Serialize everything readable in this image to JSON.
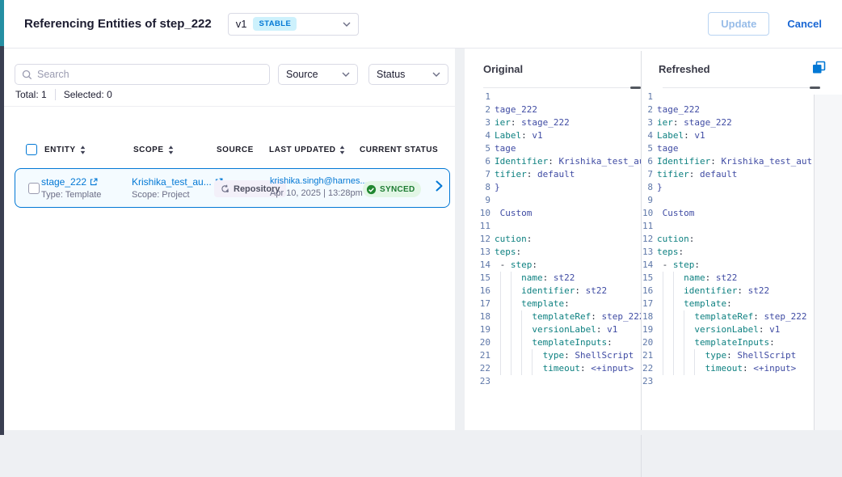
{
  "header": {
    "title": "Referencing Entities of step_222",
    "version": {
      "value": "v1",
      "badge": "STABLE"
    },
    "update_label": "Update",
    "cancel_label": "Cancel"
  },
  "toolbar": {
    "search_placeholder": "Search",
    "source_label": "Source",
    "status_label": "Status"
  },
  "summary": {
    "total": "Total: 1",
    "selected": "Selected: 0"
  },
  "table": {
    "columns": [
      {
        "label": "ENTITY",
        "sortable": true
      },
      {
        "label": "SCOPE",
        "sortable": true
      },
      {
        "label": "SOURCE",
        "sortable": false
      },
      {
        "label": "LAST UPDATED",
        "sortable": true
      },
      {
        "label": "CURRENT STATUS",
        "sortable": false
      }
    ],
    "rows": [
      {
        "entity": "stage_222",
        "entity_sub": "Type: Template",
        "scope": "Krishika_test_au...",
        "scope_sub": "Scope: Project",
        "source_badge": "Repository",
        "updated_by": "krishika.singh@harnes...",
        "updated_at": "Apr 10, 2025 | 13:28pm",
        "status": "SYNCED"
      }
    ]
  },
  "diff": {
    "panels": [
      {
        "label": "Original"
      },
      {
        "label": "Refreshed"
      }
    ],
    "lines": [
      "",
      "tage_222",
      "ier: stage_222",
      "Label: v1",
      "tage",
      "Identifier: Krishika_test_aut",
      "tifier: default",
      "}",
      "",
      " Custom",
      "",
      "cution:",
      "teps:",
      " - step:",
      "     name: st22",
      "     identifier: st22",
      "     template:",
      "       templateRef: step_222",
      "       versionLabel: v1",
      "       templateInputs:",
      "         type: ShellScript",
      "         timeout: <+input>",
      ""
    ]
  },
  "colors": {
    "primary_blue": "#0278d5",
    "stable_badge_bg": "#cdf1fc",
    "row_bg": "#f4fbff",
    "synced_bg": "#e2f6e5",
    "synced_text": "#1c7b31",
    "code_key": "#0e8181",
    "code_value": "#3f4ba3",
    "line_number": "#5f78a9"
  }
}
